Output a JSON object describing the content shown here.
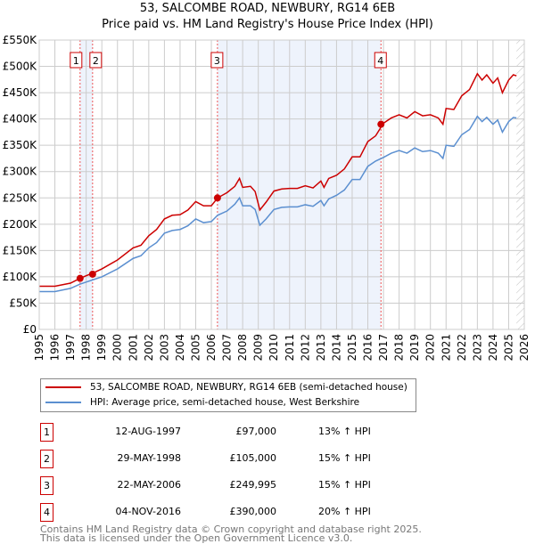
{
  "chart_data": {
    "type": "line",
    "title": "53, SALCOMBE ROAD, NEWBURY, RG14 6EB",
    "subtitle": "Price paid vs. HM Land Registry's House Price Index (HPI)",
    "xlim": [
      1995,
      2026
    ],
    "ylim": [
      0,
      550000
    ],
    "yticks": [
      0,
      50000,
      100000,
      150000,
      200000,
      250000,
      300000,
      350000,
      400000,
      450000,
      500000,
      550000
    ],
    "ytick_labels": [
      "£0",
      "£50K",
      "£100K",
      "£150K",
      "£200K",
      "£250K",
      "£300K",
      "£350K",
      "£400K",
      "£450K",
      "£500K",
      "£550K"
    ],
    "xtick_labels": [
      "1995",
      "1996",
      "1997",
      "1998",
      "1999",
      "2000",
      "2001",
      "2002",
      "2003",
      "2004",
      "2005",
      "2006",
      "2007",
      "2008",
      "2009",
      "2010",
      "2011",
      "2012",
      "2013",
      "2014",
      "2015",
      "2016",
      "2017",
      "2018",
      "2019",
      "2020",
      "2021",
      "2022",
      "2023",
      "2024",
      "2025",
      "2026"
    ],
    "grid": true,
    "x": [
      1995,
      1996,
      1997,
      1997.6,
      1998,
      1998.5,
      1999,
      2000,
      2001,
      2001.5,
      2002,
      2002.5,
      2003,
      2003.5,
      2004,
      2004.5,
      2005,
      2005.5,
      2006,
      2006.4,
      2007,
      2007.5,
      2007.8,
      2008,
      2008.5,
      2008.8,
      2009.1,
      2009.5,
      2010,
      2010.5,
      2011,
      2011.5,
      2012,
      2012.5,
      2013,
      2013.2,
      2013.5,
      2014,
      2014.5,
      2015,
      2015.5,
      2016,
      2016.5,
      2017,
      2017.5,
      2018,
      2018.5,
      2019,
      2019.5,
      2020,
      2020.5,
      2020.8,
      2021,
      2021.5,
      2022,
      2022.5,
      2023,
      2023.3,
      2023.6,
      2024,
      2024.3,
      2024.6,
      2025,
      2025.3,
      2025.5
    ],
    "series": [
      {
        "name": "53, SALCOMBE ROAD, NEWBURY, RG14 6EB (semi-detached house)",
        "color": "#cc0000",
        "values": [
          82,
          82,
          88,
          97,
          102,
          108,
          115,
          132,
          155,
          160,
          178,
          190,
          210,
          217,
          218,
          227,
          243,
          235,
          235,
          250,
          260,
          272,
          287,
          270,
          272,
          262,
          227,
          242,
          263,
          267,
          268,
          268,
          273,
          269,
          282,
          270,
          287,
          293,
          305,
          328,
          328,
          357,
          368,
          392,
          402,
          408,
          402,
          414,
          406,
          408,
          402,
          390,
          420,
          418,
          444,
          456,
          486,
          474,
          484,
          468,
          478,
          450,
          474,
          484,
          482
        ]
      },
      {
        "name": "HPI: Average price, semi-detached house, West Berkshire",
        "color": "#5b8fd0",
        "values": [
          72,
          72,
          78,
          86,
          90,
          95,
          100,
          115,
          135,
          140,
          155,
          165,
          183,
          188,
          190,
          197,
          210,
          203,
          205,
          217,
          225,
          238,
          250,
          235,
          235,
          228,
          198,
          210,
          228,
          232,
          233,
          233,
          237,
          234,
          245,
          235,
          248,
          255,
          265,
          285,
          285,
          310,
          320,
          327,
          335,
          340,
          335,
          345,
          338,
          340,
          335,
          325,
          350,
          348,
          370,
          380,
          405,
          395,
          403,
          390,
          398,
          375,
          395,
          403,
          402
        ]
      }
    ],
    "value_unit": "thousands GBP",
    "sales": [
      {
        "num": "1",
        "date": "12-AUG-1997",
        "x": 1997.61,
        "price": "£97,000",
        "value": 97,
        "hpi": "13% ↑ HPI"
      },
      {
        "num": "2",
        "date": "29-MAY-1998",
        "x": 1998.41,
        "price": "£105,000",
        "value": 105,
        "hpi": "15% ↑ HPI"
      },
      {
        "num": "3",
        "date": "22-MAY-2006",
        "x": 2006.39,
        "price": "£249,995",
        "value": 250,
        "hpi": "15% ↑ HPI"
      },
      {
        "num": "4",
        "date": "04-NOV-2016",
        "x": 2016.84,
        "price": "£390,000",
        "value": 390,
        "hpi": "20% ↑ HPI"
      }
    ],
    "shaded": [
      [
        1997.61,
        1998.41
      ],
      [
        2006.39,
        2016.84
      ]
    ],
    "forecast_from": 2025.5
  },
  "footer": [
    "Contains HM Land Registry data © Crown copyright and database right 2025.",
    "This data is licensed under the Open Government Licence v3.0."
  ]
}
